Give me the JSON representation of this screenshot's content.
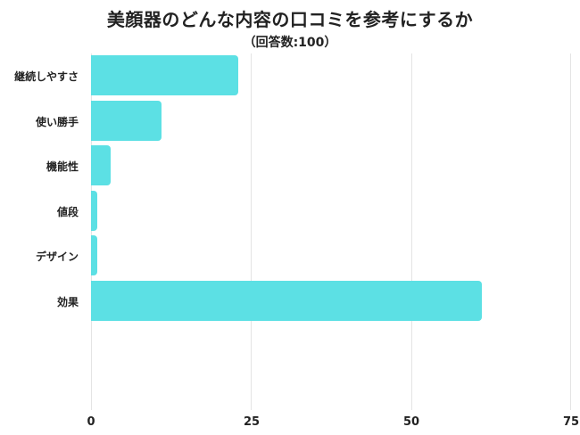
{
  "chart_data": {
    "type": "bar",
    "orientation": "horizontal",
    "title": "美顔器のどんな内容の口コミを参考にするか",
    "subtitle": "（回答数:100）",
    "categories": [
      "継続しやすさ",
      "使い勝手",
      "機能性",
      "値段",
      "デザイン",
      "効果"
    ],
    "values": [
      23,
      11,
      3,
      1,
      1,
      61
    ],
    "xlabel": "",
    "ylabel": "",
    "xlim": [
      0,
      75
    ],
    "xticks": [
      "0",
      "25",
      "50",
      "75"
    ],
    "grid": true,
    "legend": null,
    "bar_color": "#5ce0e4"
  }
}
